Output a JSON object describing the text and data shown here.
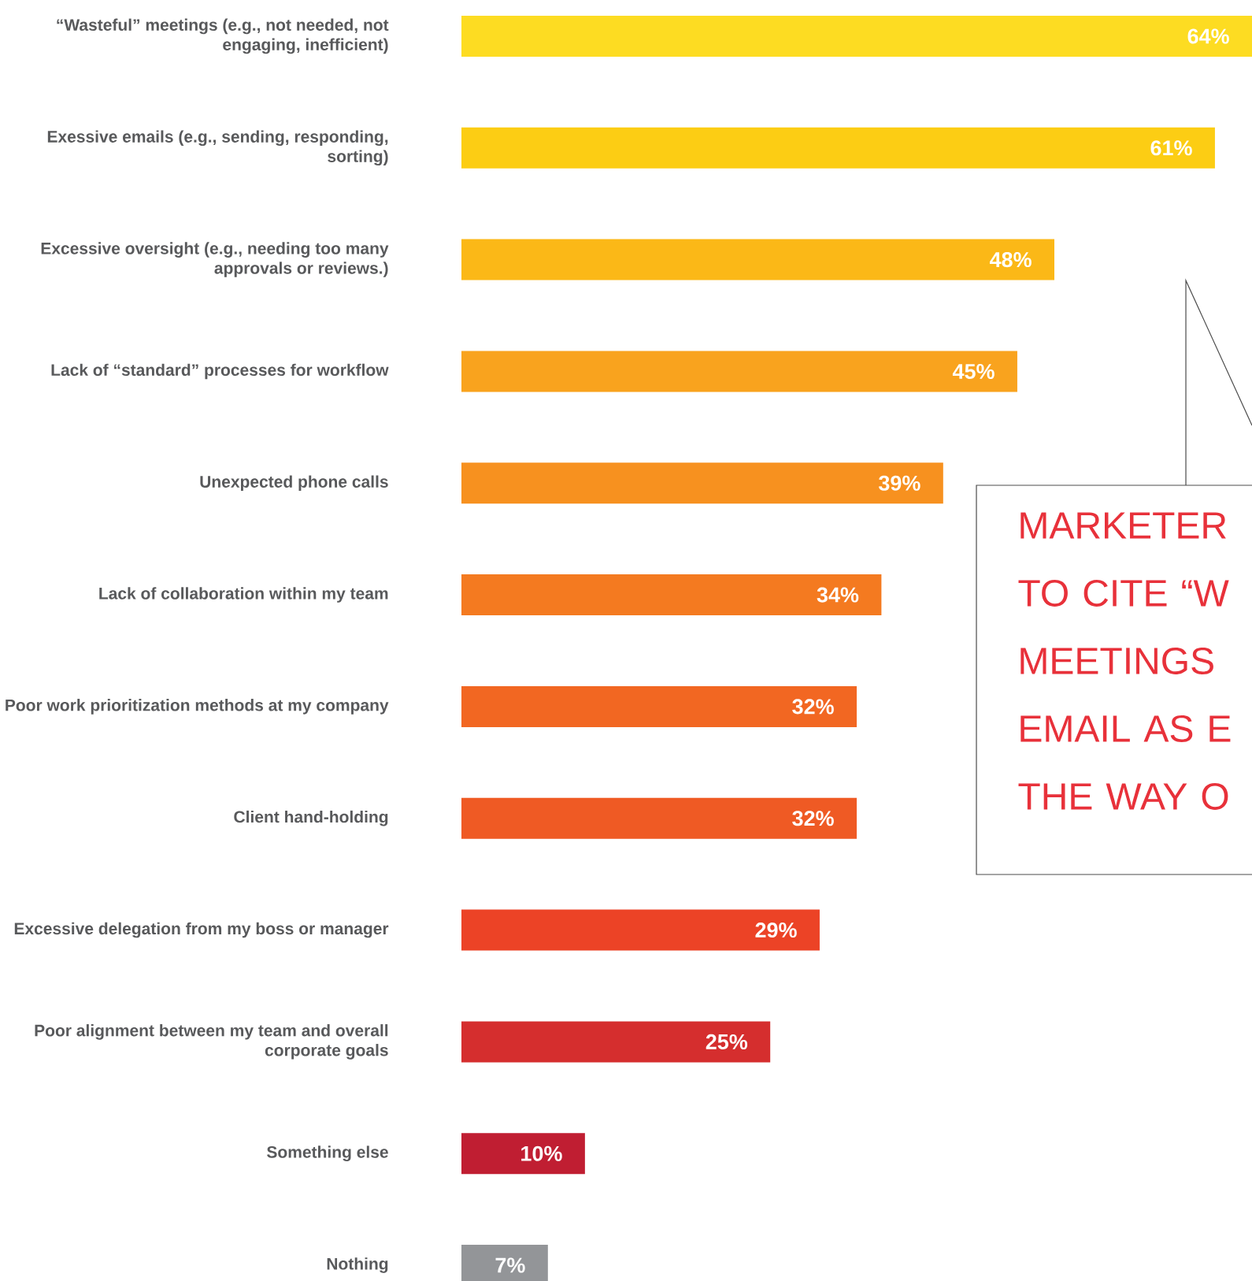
{
  "chart_data": {
    "type": "bar",
    "orientation": "horizontal",
    "categories": [
      "“Wasteful” meetings (e.g., not needed, not engaging, inefficient)",
      "Exessive emails (e.g., sending, responding, sorting)",
      "Excessive oversight (e.g., needing too many approvals or reviews.)",
      "Lack of “standard” processes for workflow",
      "Unexpected phone calls",
      "Lack of collaboration within my team",
      "Poor work prioritization methods at my company",
      "Client hand-holding",
      "Excessive delegation from my boss or manager",
      "Poor alignment between my team and overall corporate goals",
      "Something else",
      "Nothing"
    ],
    "values": [
      64,
      61,
      48,
      45,
      39,
      34,
      32,
      32,
      29,
      25,
      10,
      7
    ],
    "value_labels": [
      "64%",
      "61%",
      "48%",
      "45%",
      "39%",
      "34%",
      "32%",
      "32%",
      "29%",
      "25%",
      "10%",
      "7%"
    ],
    "colors": [
      "#fddc22",
      "#fccd14",
      "#fbb817",
      "#f9a31e",
      "#f7911f",
      "#f47a20",
      "#f26722",
      "#ef5a24",
      "#ec4326",
      "#d52e2e",
      "#c01e32",
      "#939598"
    ],
    "annotations": [
      "MARKETER TO CITE “W MEETINGS EMAIL AS E THE WAY O"
    ]
  }
}
